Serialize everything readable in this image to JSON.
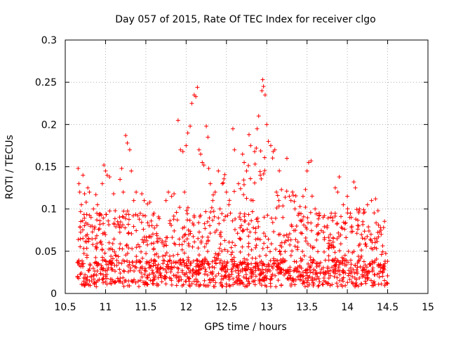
{
  "chart_data": {
    "type": "scatter",
    "title": "Day 057 of 2015, Rate Of TEC Index for receiver clgo",
    "xlabel": "GPS time / hours",
    "ylabel": "ROTI / TECUs",
    "xlim": [
      10.5,
      15
    ],
    "ylim": [
      0,
      0.3
    ],
    "xticks": [
      10.5,
      11,
      11.5,
      12,
      12.5,
      13,
      13.5,
      14,
      14.5,
      15
    ],
    "xtick_labels": [
      "10.5",
      "11",
      "11.5",
      "12",
      "12.5",
      "13",
      "13.5",
      "14",
      "14.5",
      "15"
    ],
    "yticks": [
      0,
      0.05,
      0.1,
      0.15,
      0.2,
      0.25,
      0.3
    ],
    "ytick_labels": [
      "0",
      "0.05",
      "0.1",
      "0.15",
      "0.2",
      "0.25",
      "0.3"
    ],
    "grid": true,
    "marker": "+",
    "series": [
      {
        "name": "ROTI",
        "color": "#ff0000",
        "points": [
          [
            10.66,
            0.148
          ],
          [
            10.67,
            0.13
          ],
          [
            10.68,
            0.12
          ],
          [
            10.7,
            0.105
          ],
          [
            10.72,
            0.14
          ],
          [
            10.74,
            0.118
          ],
          [
            10.76,
            0.108
          ],
          [
            10.78,
            0.125
          ],
          [
            10.8,
            0.12
          ],
          [
            10.82,
            0.09
          ],
          [
            10.85,
            0.1
          ],
          [
            10.88,
            0.117
          ],
          [
            10.9,
            0.105
          ],
          [
            10.93,
            0.082
          ],
          [
            10.96,
            0.13
          ],
          [
            10.98,
            0.152
          ],
          [
            11.0,
            0.145
          ],
          [
            11.02,
            0.14
          ],
          [
            11.05,
            0.138
          ],
          [
            11.1,
            0.118
          ],
          [
            11.12,
            0.098
          ],
          [
            11.15,
            0.085
          ],
          [
            11.18,
            0.135
          ],
          [
            11.2,
            0.148
          ],
          [
            11.22,
            0.12
          ],
          [
            11.25,
            0.187
          ],
          [
            11.27,
            0.178
          ],
          [
            11.3,
            0.17
          ],
          [
            11.32,
            0.145
          ],
          [
            11.35,
            0.11
          ],
          [
            11.38,
            0.12
          ],
          [
            11.4,
            0.092
          ],
          [
            11.45,
            0.118
          ],
          [
            11.48,
            0.11
          ],
          [
            11.52,
            0.106
          ],
          [
            11.55,
            0.108
          ],
          [
            11.6,
            0.095
          ],
          [
            11.65,
            0.065
          ],
          [
            11.7,
            0.06
          ],
          [
            11.75,
            0.11
          ],
          [
            11.78,
            0.12
          ],
          [
            11.82,
            0.115
          ],
          [
            11.85,
            0.118
          ],
          [
            11.9,
            0.205
          ],
          [
            11.93,
            0.17
          ],
          [
            11.96,
            0.168
          ],
          [
            11.98,
            0.12
          ],
          [
            12.0,
            0.175
          ],
          [
            12.02,
            0.19
          ],
          [
            12.05,
            0.198
          ],
          [
            12.07,
            0.225
          ],
          [
            12.1,
            0.235
          ],
          [
            12.12,
            0.233
          ],
          [
            12.14,
            0.244
          ],
          [
            12.16,
            0.17
          ],
          [
            12.18,
            0.165
          ],
          [
            12.2,
            0.155
          ],
          [
            12.22,
            0.152
          ],
          [
            12.25,
            0.198
          ],
          [
            12.27,
            0.185
          ],
          [
            12.28,
            0.148
          ],
          [
            12.3,
            0.13
          ],
          [
            12.33,
            0.11
          ],
          [
            12.36,
            0.12
          ],
          [
            12.4,
            0.145
          ],
          [
            12.42,
            0.1
          ],
          [
            12.45,
            0.13
          ],
          [
            12.5,
            0.12
          ],
          [
            12.53,
            0.105
          ],
          [
            12.55,
            0.095
          ],
          [
            12.58,
            0.195
          ],
          [
            12.6,
            0.17
          ],
          [
            12.65,
            0.13
          ],
          [
            12.7,
            0.165
          ],
          [
            12.72,
            0.155
          ],
          [
            12.75,
            0.145
          ],
          [
            12.78,
            0.188
          ],
          [
            12.8,
            0.175
          ],
          [
            12.83,
            0.11
          ],
          [
            12.85,
            0.168
          ],
          [
            12.87,
            0.172
          ],
          [
            12.88,
            0.195
          ],
          [
            12.9,
            0.21
          ],
          [
            12.92,
            0.14
          ],
          [
            12.94,
            0.24
          ],
          [
            12.95,
            0.253
          ],
          [
            12.96,
            0.245
          ],
          [
            12.98,
            0.235
          ],
          [
            13.0,
            0.2
          ],
          [
            13.02,
            0.18
          ],
          [
            13.05,
            0.175
          ],
          [
            13.08,
            0.168
          ],
          [
            13.1,
            0.17
          ],
          [
            13.12,
            0.12
          ],
          [
            13.15,
            0.11
          ],
          [
            13.2,
            0.09
          ],
          [
            13.25,
            0.16
          ],
          [
            13.28,
            0.115
          ],
          [
            13.3,
            0.11
          ],
          [
            13.35,
            0.1
          ],
          [
            13.4,
            0.095
          ],
          [
            13.45,
            0.115
          ],
          [
            13.5,
            0.145
          ],
          [
            13.52,
            0.155
          ],
          [
            13.55,
            0.157
          ],
          [
            13.6,
            0.1
          ],
          [
            13.65,
            0.095
          ],
          [
            13.7,
            0.09
          ],
          [
            13.75,
            0.08
          ],
          [
            13.8,
            0.095
          ],
          [
            13.85,
            0.125
          ],
          [
            13.88,
            0.12
          ],
          [
            13.9,
            0.138
          ],
          [
            13.95,
            0.105
          ],
          [
            14.0,
            0.115
          ],
          [
            14.05,
            0.09
          ],
          [
            14.08,
            0.132
          ],
          [
            14.1,
            0.125
          ],
          [
            14.15,
            0.1
          ],
          [
            14.2,
            0.095
          ],
          [
            14.25,
            0.105
          ],
          [
            14.3,
            0.11
          ],
          [
            14.35,
            0.112
          ],
          [
            14.38,
            0.098
          ],
          [
            14.42,
            0.07
          ],
          [
            14.45,
            0.03
          ]
        ]
      }
    ]
  },
  "scatter_model": {
    "x_start": 10.65,
    "x_end": 14.5,
    "background_points": 1500,
    "background_low": [
      0.008,
      0.04
    ],
    "background_high": [
      0.025,
      0.095
    ],
    "seed": 20150226
  }
}
